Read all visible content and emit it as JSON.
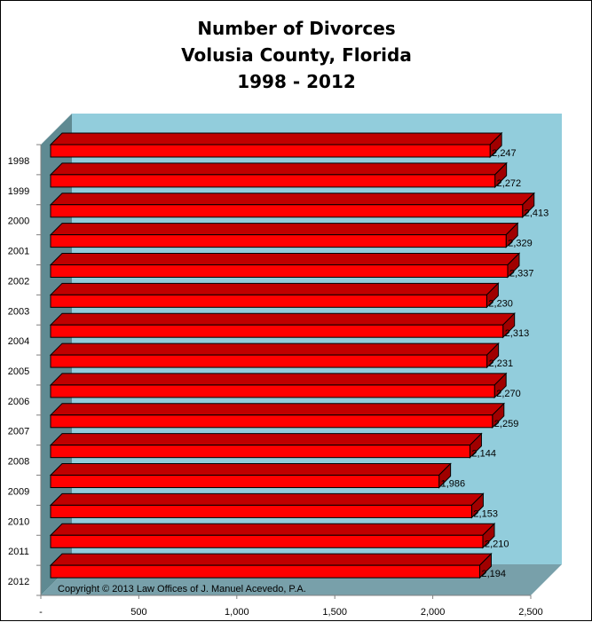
{
  "chart_data": {
    "type": "bar",
    "orientation": "horizontal",
    "style": "3d",
    "title": [
      "Number of Divorces",
      "Volusia County, Florida",
      "1998 - 2012"
    ],
    "categories": [
      "1998",
      "1999",
      "2000",
      "2001",
      "2002",
      "2003",
      "2004",
      "2005",
      "2006",
      "2007",
      "2008",
      "2009",
      "2010",
      "2011",
      "2012"
    ],
    "values": [
      2247,
      2272,
      2413,
      2329,
      2337,
      2230,
      2313,
      2231,
      2270,
      2259,
      2144,
      1986,
      2153,
      2210,
      2194
    ],
    "data_labels": [
      "2,247",
      "2,272",
      "2,413",
      "2,329",
      "2,337",
      "2,230",
      "2,313",
      "2,231",
      "2,270",
      "2,259",
      "2,144",
      "1,986",
      "2,153",
      "2,210",
      "2,194"
    ],
    "xlim": [
      0,
      2500
    ],
    "x_ticks": [
      "-",
      "500",
      "1,000",
      "1,500",
      "2,000",
      "2,500"
    ],
    "xlabel": "",
    "ylabel": "",
    "legend": "none",
    "annotation": "Copyright © 2013 Law Offices of J. Manuel Acevedo, P.A.",
    "colors": {
      "bar_front": "#ff0000",
      "bar_top": "#c00000",
      "bar_side": "#a00000",
      "back_wall": "#92cddc",
      "side_wall": "#5f8a92",
      "floor": "#78a0aa"
    }
  }
}
